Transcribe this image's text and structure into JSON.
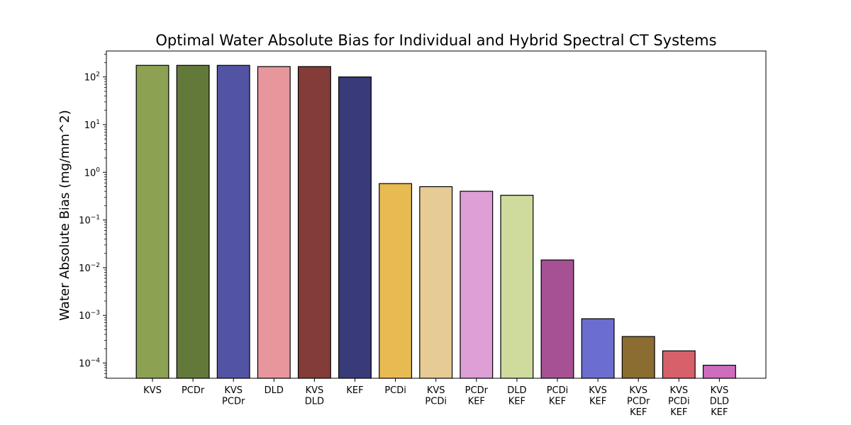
{
  "chart_data": {
    "type": "bar",
    "title": "Optimal Water Absolute Bias for Individual and Hybrid Spectral CT Systems",
    "xlabel": "",
    "ylabel": "Water Absolute Bias (mg/mm^2)",
    "y_scale": "log",
    "ylim": [
      4.8e-05,
      350
    ],
    "grid": false,
    "y_ticks": [
      {
        "value": 0.0001,
        "base": "10",
        "exp": "−4"
      },
      {
        "value": 0.001,
        "base": "10",
        "exp": "−3"
      },
      {
        "value": 0.01,
        "base": "10",
        "exp": "−2"
      },
      {
        "value": 0.1,
        "base": "10",
        "exp": "−1"
      },
      {
        "value": 1,
        "base": "10",
        "exp": "0"
      },
      {
        "value": 10,
        "base": "10",
        "exp": "1"
      },
      {
        "value": 100,
        "base": "10",
        "exp": "2"
      }
    ],
    "categories": [
      "KVS",
      "PCDr",
      "KVS\nPCDr",
      "DLD",
      "KVS\nDLD",
      "KEF",
      "PCDi",
      "KVS\nPCDi",
      "PCDr\nKEF",
      "DLD\nKEF",
      "PCDi\nKEF",
      "KVS\nKEF",
      "KVS\nPCDr\nKEF",
      "KVS\nPCDi\nKEF",
      "KVS\nDLD\nKEF"
    ],
    "values": [
      175,
      175,
      175,
      165,
      165,
      100,
      0.58,
      0.5,
      0.4,
      0.33,
      0.0145,
      0.00085,
      0.00036,
      0.00018,
      9e-05
    ],
    "colors": [
      "#8ca252",
      "#637939",
      "#5254a3",
      "#e7969c",
      "#843c39",
      "#393b79",
      "#e7ba52",
      "#e7cb94",
      "#de9ed6",
      "#cedb9c",
      "#a55194",
      "#6b6ecf",
      "#8c6d31",
      "#d6616b",
      "#ce6dbd"
    ]
  }
}
